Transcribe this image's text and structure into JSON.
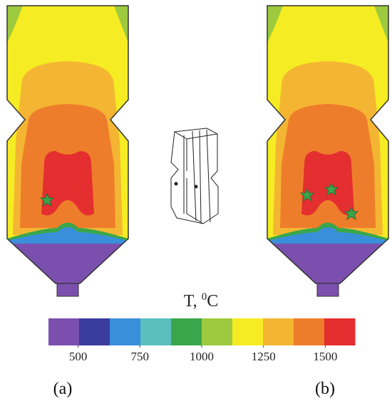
{
  "colorbar": {
    "title": {
      "text": "T, ",
      "superscript": "0",
      "unit": "C"
    },
    "colors": [
      "#7b4fae",
      "#3a3c9e",
      "#3a8fda",
      "#5bbfc0",
      "#3aa64b",
      "#9dca3e",
      "#f6ec23",
      "#f4b632",
      "#ee7d2b",
      "#e42e2f"
    ],
    "lim": [
      380,
      1620
    ],
    "ticks": [
      500,
      750,
      1000,
      1250,
      1500
    ]
  },
  "panels": [
    {
      "label": "(a)"
    },
    {
      "label": "(b)"
    }
  ]
}
